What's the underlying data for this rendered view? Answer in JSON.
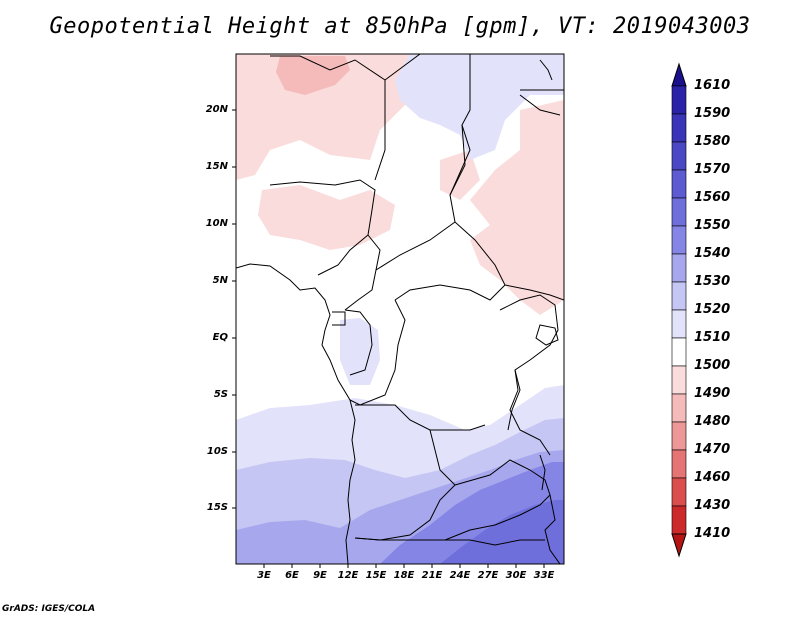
{
  "title": "Geopotential Height at 850hPa [gpm], VT: 2019043003",
  "footer": "GrADS: IGES/COLA",
  "map": {
    "variable": "Geopotential Height",
    "level": "850hPa",
    "units": "gpm",
    "valid_time": "2019043003",
    "lat_labels": [
      "20N",
      "15N",
      "10N",
      "5N",
      "EQ",
      "5S",
      "10S",
      "15S"
    ],
    "lon_labels": [
      "3E",
      "6E",
      "9E",
      "12E",
      "15E",
      "18E",
      "21E",
      "24E",
      "27E",
      "30E",
      "33E"
    ]
  },
  "colorbar": {
    "levels": [
      "1610",
      "1590",
      "1580",
      "1570",
      "1560",
      "1550",
      "1540",
      "1530",
      "1520",
      "1510",
      "1500",
      "1490",
      "1480",
      "1470",
      "1460",
      "1430",
      "1410"
    ],
    "colors": [
      "#1a0f8c",
      "#2a22a8",
      "#3a35b8",
      "#4b48c6",
      "#5c5bd2",
      "#6f6fdc",
      "#8585e6",
      "#a7a7ee",
      "#c6c6f4",
      "#e2e2fa",
      "#ffffff",
      "#fbdcdc",
      "#f5baba",
      "#ee9797",
      "#e57474",
      "#db4e4e",
      "#cc2a2a",
      "#b51414"
    ]
  },
  "colors": {
    "blue_1520": "#e2e2fa",
    "blue_1530": "#c6c6f4",
    "blue_1540": "#a7a7ee",
    "blue_1550": "#8585e6",
    "blue_1560": "#6f6fdc",
    "red_1500": "#fbdcdc",
    "red_1490": "#f5baba"
  }
}
